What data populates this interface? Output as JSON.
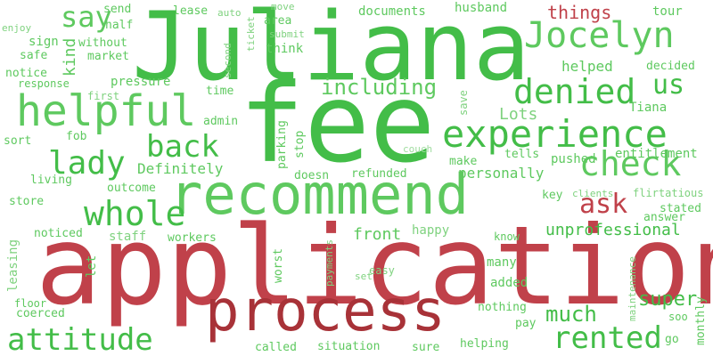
{
  "palette": {
    "green_dark": "#43bd48",
    "green": "#52c453",
    "green_mid": "#5ec95f",
    "green_light": "#7fd27f",
    "green_pale": "#9fdc9f",
    "red": "#c0414a",
    "red_dark": "#a83238"
  },
  "words": [
    {
      "text": "Juliana",
      "color": "green_dark",
      "vertical": false
    },
    {
      "text": "fee",
      "color": "green_dark",
      "vertical": false
    },
    {
      "text": "application",
      "color": "red",
      "vertical": false
    },
    {
      "text": "recommend",
      "color": "green_mid",
      "vertical": false
    },
    {
      "text": "process",
      "color": "red_dark",
      "vertical": false
    },
    {
      "text": "helpful",
      "color": "green_mid",
      "vertical": false
    },
    {
      "text": "experience",
      "color": "green_dark",
      "vertical": false
    },
    {
      "text": "Jocelyn",
      "color": "green_mid",
      "vertical": false
    },
    {
      "text": "denied",
      "color": "green_dark",
      "vertical": false
    },
    {
      "text": "attitude",
      "color": "green_dark",
      "vertical": false
    },
    {
      "text": "rented",
      "color": "green_dark",
      "vertical": false
    },
    {
      "text": "whole",
      "color": "green_dark",
      "vertical": false
    },
    {
      "text": "check",
      "color": "green_mid",
      "vertical": false
    },
    {
      "text": "back",
      "color": "green_dark",
      "vertical": false
    },
    {
      "text": "lady",
      "color": "green_dark",
      "vertical": false
    },
    {
      "text": "say",
      "color": "green_mid",
      "vertical": false
    },
    {
      "text": "ask",
      "color": "red",
      "vertical": false
    },
    {
      "text": "us",
      "color": "green_dark",
      "vertical": false
    },
    {
      "text": "including",
      "color": "green_mid",
      "vertical": false
    },
    {
      "text": "much",
      "color": "green_dark",
      "vertical": false
    },
    {
      "text": "super",
      "color": "green_dark",
      "vertical": false
    },
    {
      "text": "unprofessional",
      "color": "green_dark",
      "vertical": false
    },
    {
      "text": "things",
      "color": "red",
      "vertical": false
    },
    {
      "text": "front",
      "color": "green_mid",
      "vertical": false
    },
    {
      "text": "Definitely",
      "color": "green_mid",
      "vertical": false
    },
    {
      "text": "Lots",
      "color": "green_light",
      "vertical": false
    },
    {
      "text": "Tiana",
      "color": "green_mid",
      "vertical": false
    },
    {
      "text": "kind",
      "color": "green_mid",
      "vertical": true
    },
    {
      "text": "helped",
      "color": "green_mid",
      "vertical": false
    },
    {
      "text": "documents",
      "color": "green_mid",
      "vertical": false
    },
    {
      "text": "husband",
      "color": "green_mid",
      "vertical": false
    },
    {
      "text": "tour",
      "color": "green_mid",
      "vertical": false
    },
    {
      "text": "decided",
      "color": "green_mid",
      "vertical": false
    },
    {
      "text": "entitlement",
      "color": "green_mid",
      "vertical": false
    },
    {
      "text": "pushed",
      "color": "green_mid",
      "vertical": false
    },
    {
      "text": "tells",
      "color": "green_mid",
      "vertical": false
    },
    {
      "text": "personally",
      "color": "green_mid",
      "vertical": false
    },
    {
      "text": "make",
      "color": "green_mid",
      "vertical": false
    },
    {
      "text": "refunded",
      "color": "green_mid",
      "vertical": false
    },
    {
      "text": "doesn",
      "color": "green_mid",
      "vertical": false
    },
    {
      "text": "living",
      "color": "green_mid",
      "vertical": false
    },
    {
      "text": "outcome",
      "color": "green_mid",
      "vertical": false
    },
    {
      "text": "store",
      "color": "green_mid",
      "vertical": false
    },
    {
      "text": "staff",
      "color": "green_light",
      "vertical": false
    },
    {
      "text": "workers",
      "color": "green_mid",
      "vertical": false
    },
    {
      "text": "happy",
      "color": "green_light",
      "vertical": false
    },
    {
      "text": "know",
      "color": "green_mid",
      "vertical": false
    },
    {
      "text": "many",
      "color": "green_mid",
      "vertical": false
    },
    {
      "text": "added",
      "color": "green_mid",
      "vertical": false
    },
    {
      "text": "nothing",
      "color": "green_mid",
      "vertical": false
    },
    {
      "text": "pay",
      "color": "green_mid",
      "vertical": false
    },
    {
      "text": "helping",
      "color": "green_mid",
      "vertical": false
    },
    {
      "text": "sure",
      "color": "green_mid",
      "vertical": false
    },
    {
      "text": "situation",
      "color": "green_mid",
      "vertical": false
    },
    {
      "text": "called",
      "color": "green_mid",
      "vertical": false
    },
    {
      "text": "coerced",
      "color": "green_mid",
      "vertical": false
    },
    {
      "text": "floor",
      "color": "green_mid",
      "vertical": false
    },
    {
      "text": "noticed",
      "color": "green_mid",
      "vertical": false
    },
    {
      "text": "admin",
      "color": "green_mid",
      "vertical": false
    },
    {
      "text": "time",
      "color": "green_mid",
      "vertical": false
    },
    {
      "text": "sort",
      "color": "green_mid",
      "vertical": false
    },
    {
      "text": "fob",
      "color": "green_mid",
      "vertical": false
    },
    {
      "text": "half",
      "color": "green_mid",
      "vertical": false
    },
    {
      "text": "send",
      "color": "green_mid",
      "vertical": false
    },
    {
      "text": "without",
      "color": "green_mid",
      "vertical": false
    },
    {
      "text": "market",
      "color": "green_mid",
      "vertical": false
    },
    {
      "text": "pressure",
      "color": "green_mid",
      "vertical": false
    },
    {
      "text": "response",
      "color": "green_mid",
      "vertical": false
    },
    {
      "text": "sign",
      "color": "green_mid",
      "vertical": false
    },
    {
      "text": "safe",
      "color": "green_mid",
      "vertical": false
    },
    {
      "text": "notice",
      "color": "green_mid",
      "vertical": false
    },
    {
      "text": "enjoy",
      "color": "green_light",
      "vertical": false
    },
    {
      "text": "lease",
      "color": "green_mid",
      "vertical": false
    },
    {
      "text": "auto",
      "color": "green_light",
      "vertical": false
    },
    {
      "text": "move",
      "color": "green_light",
      "vertical": false
    },
    {
      "text": "area",
      "color": "green_mid",
      "vertical": false
    },
    {
      "text": "submit",
      "color": "green_light",
      "vertical": false
    },
    {
      "text": "think",
      "color": "green_mid",
      "vertical": false
    },
    {
      "text": "first",
      "color": "green_light",
      "vertical": false
    },
    {
      "text": "couch",
      "color": "green_pale",
      "vertical": false
    },
    {
      "text": "key",
      "color": "green_mid",
      "vertical": false
    },
    {
      "text": "clients",
      "color": "green_light",
      "vertical": false
    },
    {
      "text": "flirtatious",
      "color": "green_light",
      "vertical": false
    },
    {
      "text": "stated",
      "color": "green_mid",
      "vertical": false
    },
    {
      "text": "answer",
      "color": "green_mid",
      "vertical": false
    },
    {
      "text": "easy",
      "color": "green_light",
      "vertical": false
    },
    {
      "text": "set",
      "color": "green_light",
      "vertical": false
    },
    {
      "text": "soo",
      "color": "green_mid",
      "vertical": false
    },
    {
      "text": "go",
      "color": "green_mid",
      "vertical": false
    },
    {
      "text": "second",
      "color": "green_light",
      "vertical": true
    },
    {
      "text": "ticket",
      "color": "green_light",
      "vertical": true
    },
    {
      "text": "save",
      "color": "green_light",
      "vertical": true
    },
    {
      "text": "parking",
      "color": "green_mid",
      "vertical": true
    },
    {
      "text": "stop",
      "color": "green_mid",
      "vertical": true
    },
    {
      "text": "leasing",
      "color": "green_light",
      "vertical": true
    },
    {
      "text": "let",
      "color": "green_mid",
      "vertical": true
    },
    {
      "text": "worst",
      "color": "green_mid",
      "vertical": true
    },
    {
      "text": "payments",
      "color": "green_light",
      "vertical": true
    },
    {
      "text": "maintenance",
      "color": "green_light",
      "vertical": true
    },
    {
      "text": "monthly",
      "color": "green_mid",
      "vertical": true
    }
  ]
}
